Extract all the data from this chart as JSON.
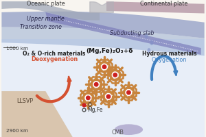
{
  "bg_color": "#f8f5f0",
  "labels": {
    "oceanic_plate": "Oceanic plate",
    "continental_plate": "Continental plate",
    "upper_mantle": "Upper mantle",
    "transition_zone": "Transition zone",
    "subducting_slab": "Subducting slab",
    "o2_rich": "O₂ & O-rich materials",
    "deoxygenation": "Deoxygenation",
    "mg_fe_phase": "(Mg,Fe)₂O₃+δ",
    "hydrous": "Hydrous materials",
    "oxygenation": "Oxygenation",
    "llsvp": "LLSVP",
    "cmb": "CMB",
    "depth_1000": "1000 km",
    "depth_2900": "2900 km",
    "o_legend": "O",
    "mgfe_legend": "Mg,Fe"
  },
  "colors": {
    "upper_mantle_blue": "#8090c0",
    "transition_blue": "#90a8d0",
    "lower_mantle_light": "#e8eef8",
    "slab_purple": "#7878b8",
    "ocean_plate": "#a0a8b8",
    "cont_plate": "#b090a0",
    "llsvp_tan": "#d4b896",
    "crystal_brown": "#c8843c",
    "deoxygenation_arrow": "#d45030",
    "oxygenation_arrow": "#4080c0",
    "cmb_purple": "#8878b0",
    "deoxy_text": "#d45030",
    "oxy_text": "#4080c0",
    "droplet": "#8090c8",
    "red_dot": "#cc2020",
    "white": "#ffffff"
  }
}
